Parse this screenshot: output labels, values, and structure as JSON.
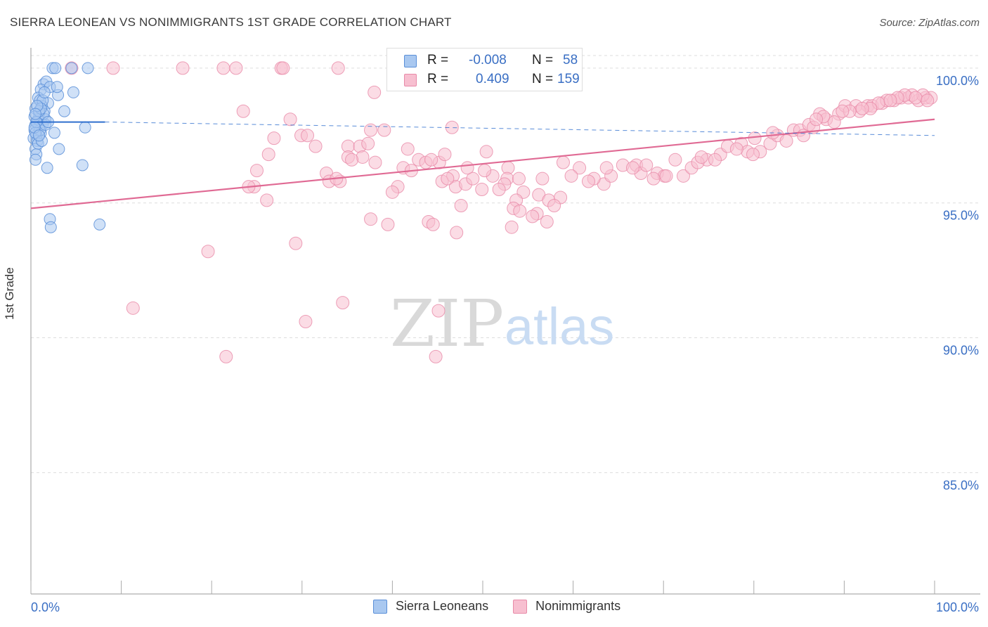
{
  "title": "SIERRA LEONEAN VS NONIMMIGRANTS 1ST GRADE CORRELATION CHART",
  "source": "Source: ZipAtlas.com",
  "watermark": {
    "zip": "ZIP",
    "atlas": "atlas"
  },
  "legend_top": [
    {
      "r_label": "R =",
      "r_value": "-0.008",
      "n_label": "N =",
      "n_value": "58"
    },
    {
      "r_label": "R =",
      "r_value": "0.409",
      "n_label": "N =",
      "n_value": "159"
    }
  ],
  "legend_bottom": [
    "Sierra Leoneans",
    "Nonimmigrants"
  ],
  "colors": {
    "blue_fill": "#a9c8f0",
    "blue_stroke": "#5a8fd8",
    "blue_line": "#2f6fce",
    "pink_fill": "#f7bfd0",
    "pink_stroke": "#e88aa8",
    "pink_line": "#e06a94",
    "tick_text": "#3a6fc4",
    "grid": "#dddddd"
  },
  "chart_data": {
    "type": "scatter",
    "title": "SIERRA LEONEAN VS NONIMMIGRANTS 1ST GRADE CORRELATION CHART",
    "xlabel": "",
    "ylabel": "1st Grade",
    "xlim": [
      0,
      100
    ],
    "ylim": [
      80.5,
      100.7
    ],
    "x_tick_labels": [
      "0.0%",
      "100.0%"
    ],
    "y_ticks": [
      85,
      90,
      95,
      100
    ],
    "y_tick_labels": [
      "85.0%",
      "90.0%",
      "95.0%",
      "100.0%"
    ],
    "grid": true,
    "legend_position": "top-center",
    "series": [
      {
        "name": "Sierra Leoneans",
        "color": "#a9c8f0",
        "trend": {
          "x": [
            0,
            8.2
          ],
          "y": [
            98.0,
            98.0
          ],
          "dashed_to_x": 100,
          "dashed_end_y": 97.5
        },
        "points": [
          [
            2.4,
            100.0
          ],
          [
            4.5,
            100.0
          ],
          [
            6.3,
            100.0
          ],
          [
            2.7,
            100.0
          ],
          [
            1.4,
            99.4
          ],
          [
            1.7,
            99.5
          ],
          [
            1.1,
            99.2
          ],
          [
            2.1,
            99.3
          ],
          [
            4.7,
            99.1
          ],
          [
            3.0,
            99.0
          ],
          [
            0.8,
            98.9
          ],
          [
            1.9,
            98.7
          ],
          [
            1.2,
            98.6
          ],
          [
            0.5,
            98.5
          ],
          [
            1.5,
            98.4
          ],
          [
            0.9,
            98.3
          ],
          [
            3.7,
            98.4
          ],
          [
            1.6,
            98.1
          ],
          [
            0.7,
            98.0
          ],
          [
            0.5,
            97.9
          ],
          [
            1.3,
            97.9
          ],
          [
            0.9,
            97.8
          ],
          [
            0.4,
            97.7
          ],
          [
            1.1,
            97.6
          ],
          [
            0.6,
            97.5
          ],
          [
            0.3,
            97.4
          ],
          [
            0.7,
            97.3
          ],
          [
            2.6,
            97.6
          ],
          [
            6.0,
            97.8
          ],
          [
            0.5,
            97.0
          ],
          [
            3.1,
            97.0
          ],
          [
            0.6,
            96.8
          ],
          [
            0.5,
            96.6
          ],
          [
            1.8,
            96.3
          ],
          [
            5.7,
            96.4
          ],
          [
            2.1,
            94.4
          ],
          [
            2.2,
            94.1
          ],
          [
            7.6,
            94.2
          ],
          [
            1.0,
            98.8
          ],
          [
            0.8,
            98.1
          ],
          [
            1.4,
            98.3
          ],
          [
            0.4,
            98.2
          ],
          [
            1.0,
            97.7
          ],
          [
            0.8,
            97.2
          ],
          [
            1.6,
            97.9
          ],
          [
            0.5,
            97.6
          ],
          [
            0.9,
            98.4
          ],
          [
            1.3,
            98.8
          ],
          [
            2.9,
            99.3
          ],
          [
            0.6,
            98.0
          ],
          [
            1.1,
            98.5
          ],
          [
            0.4,
            97.8
          ],
          [
            1.2,
            97.3
          ],
          [
            0.7,
            98.6
          ],
          [
            1.5,
            99.1
          ],
          [
            0.5,
            98.3
          ],
          [
            0.9,
            97.5
          ],
          [
            1.9,
            98.0
          ]
        ]
      },
      {
        "name": "Nonimmigrants",
        "color": "#f7bfd0",
        "trend": {
          "x": [
            0,
            100
          ],
          "y": [
            94.8,
            98.1
          ]
        },
        "points": [
          [
            4.5,
            100.0
          ],
          [
            9.1,
            100.0
          ],
          [
            16.8,
            100.0
          ],
          [
            21.3,
            100.0
          ],
          [
            22.7,
            100.0
          ],
          [
            27.7,
            100.0
          ],
          [
            27.9,
            100.0
          ],
          [
            34.0,
            100.0
          ],
          [
            23.5,
            98.4
          ],
          [
            28.7,
            98.1
          ],
          [
            38.0,
            99.1
          ],
          [
            26.9,
            97.4
          ],
          [
            29.9,
            97.5
          ],
          [
            30.6,
            97.5
          ],
          [
            31.5,
            97.1
          ],
          [
            35.1,
            97.1
          ],
          [
            36.4,
            97.1
          ],
          [
            37.6,
            97.7
          ],
          [
            39.1,
            97.7
          ],
          [
            41.7,
            97.0
          ],
          [
            46.6,
            97.8
          ],
          [
            26.3,
            96.8
          ],
          [
            25.0,
            96.2
          ],
          [
            24.7,
            95.6
          ],
          [
            26.1,
            95.1
          ],
          [
            24.1,
            95.6
          ],
          [
            32.7,
            96.1
          ],
          [
            33.0,
            95.8
          ],
          [
            35.1,
            96.7
          ],
          [
            37.3,
            97.2
          ],
          [
            41.2,
            96.3
          ],
          [
            42.9,
            96.6
          ],
          [
            43.7,
            96.5
          ],
          [
            45.2,
            96.5
          ],
          [
            46.7,
            96.0
          ],
          [
            45.5,
            95.8
          ],
          [
            47.0,
            95.6
          ],
          [
            48.1,
            95.7
          ],
          [
            49.9,
            95.5
          ],
          [
            48.9,
            95.9
          ],
          [
            51.1,
            96.0
          ],
          [
            52.8,
            96.3
          ],
          [
            52.7,
            95.9
          ],
          [
            54.5,
            95.4
          ],
          [
            56.2,
            95.3
          ],
          [
            57.3,
            95.1
          ],
          [
            58.6,
            95.2
          ],
          [
            60.7,
            96.3
          ],
          [
            63.4,
            95.7
          ],
          [
            62.3,
            95.9
          ],
          [
            64.2,
            96.0
          ],
          [
            65.5,
            96.4
          ],
          [
            67.0,
            96.4
          ],
          [
            67.5,
            96.1
          ],
          [
            69.3,
            96.1
          ],
          [
            70.1,
            96.0
          ],
          [
            72.2,
            96.0
          ],
          [
            73.1,
            96.3
          ],
          [
            74.8,
            96.6
          ],
          [
            76.3,
            96.8
          ],
          [
            77.1,
            97.1
          ],
          [
            78.6,
            97.2
          ],
          [
            79.3,
            96.9
          ],
          [
            80.1,
            97.4
          ],
          [
            81.8,
            97.2
          ],
          [
            82.6,
            97.5
          ],
          [
            84.4,
            97.7
          ],
          [
            85.1,
            97.7
          ],
          [
            86.1,
            97.9
          ],
          [
            87.3,
            98.3
          ],
          [
            88.0,
            98.1
          ],
          [
            89.4,
            98.3
          ],
          [
            90.1,
            98.6
          ],
          [
            91.3,
            98.6
          ],
          [
            92.6,
            98.6
          ],
          [
            93.1,
            98.6
          ],
          [
            94.2,
            98.7
          ],
          [
            95.5,
            98.8
          ],
          [
            96.3,
            98.9
          ],
          [
            97.1,
            98.9
          ],
          [
            98.2,
            98.8
          ],
          [
            99.0,
            98.9
          ],
          [
            99.6,
            98.9
          ],
          [
            98.7,
            99.0
          ],
          [
            97.5,
            99.0
          ],
          [
            96.7,
            99.0
          ],
          [
            95.9,
            98.9
          ],
          [
            94.7,
            98.8
          ],
          [
            93.8,
            98.7
          ],
          [
            92.9,
            98.5
          ],
          [
            91.7,
            98.4
          ],
          [
            90.6,
            98.4
          ],
          [
            88.9,
            98.0
          ],
          [
            87.7,
            98.2
          ],
          [
            86.6,
            97.8
          ],
          [
            85.5,
            97.5
          ],
          [
            83.6,
            97.3
          ],
          [
            82.1,
            97.6
          ],
          [
            80.7,
            96.9
          ],
          [
            79.9,
            96.8
          ],
          [
            78.1,
            97.0
          ],
          [
            75.7,
            96.6
          ],
          [
            73.8,
            96.5
          ],
          [
            71.3,
            96.6
          ],
          [
            70.3,
            96.0
          ],
          [
            68.9,
            95.9
          ],
          [
            66.6,
            96.3
          ],
          [
            63.7,
            96.3
          ],
          [
            61.7,
            95.8
          ],
          [
            59.8,
            96.0
          ],
          [
            58.9,
            96.5
          ],
          [
            56.6,
            95.9
          ],
          [
            54.0,
            95.9
          ],
          [
            52.4,
            95.7
          ],
          [
            50.2,
            96.2
          ],
          [
            48.3,
            96.3
          ],
          [
            46.1,
            95.9
          ],
          [
            44.3,
            96.6
          ],
          [
            42.1,
            96.2
          ],
          [
            40.6,
            95.6
          ],
          [
            40.0,
            95.4
          ],
          [
            38.1,
            96.5
          ],
          [
            36.7,
            96.7
          ],
          [
            35.5,
            96.6
          ],
          [
            34.2,
            95.8
          ],
          [
            33.8,
            95.9
          ],
          [
            29.3,
            93.5
          ],
          [
            19.6,
            93.2
          ],
          [
            37.6,
            94.4
          ],
          [
            39.5,
            94.2
          ],
          [
            44.0,
            94.3
          ],
          [
            44.5,
            94.2
          ],
          [
            47.1,
            93.9
          ],
          [
            47.6,
            94.9
          ],
          [
            51.8,
            95.5
          ],
          [
            53.7,
            95.1
          ],
          [
            53.4,
            94.8
          ],
          [
            54.1,
            94.7
          ],
          [
            56.0,
            94.6
          ],
          [
            55.5,
            94.5
          ],
          [
            53.2,
            94.1
          ],
          [
            57.1,
            94.3
          ],
          [
            57.9,
            94.9
          ],
          [
            34.5,
            91.3
          ],
          [
            30.4,
            90.6
          ],
          [
            45.1,
            91.0
          ],
          [
            11.3,
            91.1
          ],
          [
            21.6,
            89.3
          ],
          [
            44.8,
            89.3
          ],
          [
            50.4,
            96.9
          ],
          [
            45.8,
            96.8
          ],
          [
            68.1,
            96.4
          ],
          [
            74.2,
            96.7
          ],
          [
            86.9,
            98.1
          ],
          [
            89.8,
            98.4
          ],
          [
            92.0,
            98.5
          ],
          [
            95.1,
            98.8
          ],
          [
            97.9,
            98.9
          ],
          [
            99.2,
            98.8
          ]
        ]
      }
    ]
  }
}
